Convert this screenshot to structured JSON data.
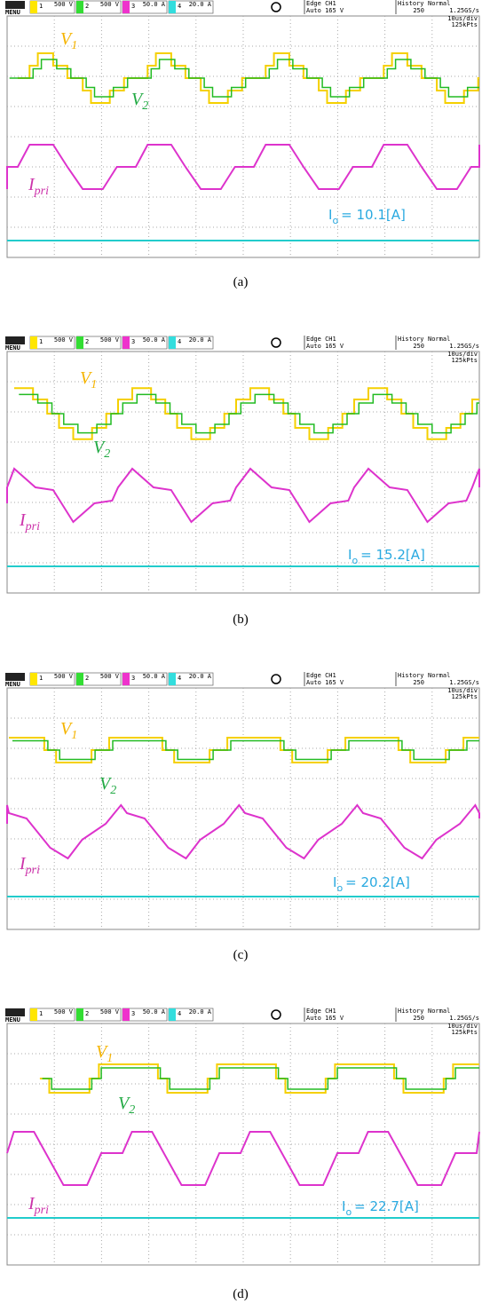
{
  "panels": [
    {
      "menu": "MENU",
      "channels": [
        {
          "num": "1",
          "scale": "500 V"
        },
        {
          "num": "2",
          "scale": "500 V"
        },
        {
          "num": "3",
          "scale": "50.0 A"
        },
        {
          "num": "4",
          "scale": "20.0 A"
        }
      ],
      "trigger": [
        "Edge CH1",
        "Auto 165 V"
      ],
      "history": [
        "History",
        "250"
      ],
      "mode": [
        "Normal",
        "1.25GS/s"
      ],
      "timebase": [
        "10us/div",
        "125kPts"
      ],
      "labels": {
        "v1": {
          "base": "V",
          "sub": "1"
        },
        "v2": {
          "base": "V",
          "sub": "2"
        },
        "ipri": {
          "base": "I",
          "sub": "pri"
        },
        "io": {
          "base": "I",
          "sub": "o",
          "text": "= 10.1[A]"
        }
      },
      "caption": "(a)"
    },
    {
      "menu": "MENU",
      "channels": [
        {
          "num": "1",
          "scale": "500 V"
        },
        {
          "num": "2",
          "scale": "500 V"
        },
        {
          "num": "3",
          "scale": "50.0 A"
        },
        {
          "num": "4",
          "scale": "20.0 A"
        }
      ],
      "trigger": [
        "Edge CH1",
        "Auto 165 V"
      ],
      "history": [
        "History",
        "250"
      ],
      "mode": [
        "Normal",
        "1.25GS/s"
      ],
      "timebase": [
        "10us/div",
        "125kPts"
      ],
      "labels": {
        "v1": {
          "base": "V",
          "sub": "1"
        },
        "v2": {
          "base": "V",
          "sub": "2"
        },
        "ipri": {
          "base": "I",
          "sub": "pri"
        },
        "io": {
          "base": "I",
          "sub": "o",
          "text": "= 15.2[A]"
        }
      },
      "caption": "(b)"
    },
    {
      "menu": "MENU",
      "channels": [
        {
          "num": "1",
          "scale": "500 V"
        },
        {
          "num": "2",
          "scale": "500 V"
        },
        {
          "num": "3",
          "scale": "50.0 A"
        },
        {
          "num": "4",
          "scale": "20.0 A"
        }
      ],
      "trigger": [
        "Edge CH1",
        "Auto 165 V"
      ],
      "history": [
        "History",
        "250"
      ],
      "mode": [
        "Normal",
        "1.25GS/s"
      ],
      "timebase": [
        "10us/div",
        "125kPts"
      ],
      "labels": {
        "v1": {
          "base": "V",
          "sub": "1"
        },
        "v2": {
          "base": "V",
          "sub": "2"
        },
        "ipri": {
          "base": "I",
          "sub": "pri"
        },
        "io": {
          "base": "I",
          "sub": "o",
          "text": "= 20.2[A]"
        }
      },
      "caption": "(c)"
    },
    {
      "menu": "MENU",
      "channels": [
        {
          "num": "1",
          "scale": "500 V"
        },
        {
          "num": "2",
          "scale": "500 V"
        },
        {
          "num": "3",
          "scale": "50.0 A"
        },
        {
          "num": "4",
          "scale": "20.0 A"
        }
      ],
      "trigger": [
        "Edge CH1",
        "Auto 165 V"
      ],
      "history": [
        "History",
        "250"
      ],
      "mode": [
        "Normal",
        "1.25GS/s"
      ],
      "timebase": [
        "10us/div",
        "125kPts"
      ],
      "labels": {
        "v1": {
          "base": "V",
          "sub": "1"
        },
        "v2": {
          "base": "V",
          "sub": "2"
        },
        "ipri": {
          "base": "I",
          "sub": "pri"
        },
        "io": {
          "base": "I",
          "sub": "o",
          "text": "= 22.7[A]"
        }
      },
      "caption": "(d)"
    }
  ]
}
